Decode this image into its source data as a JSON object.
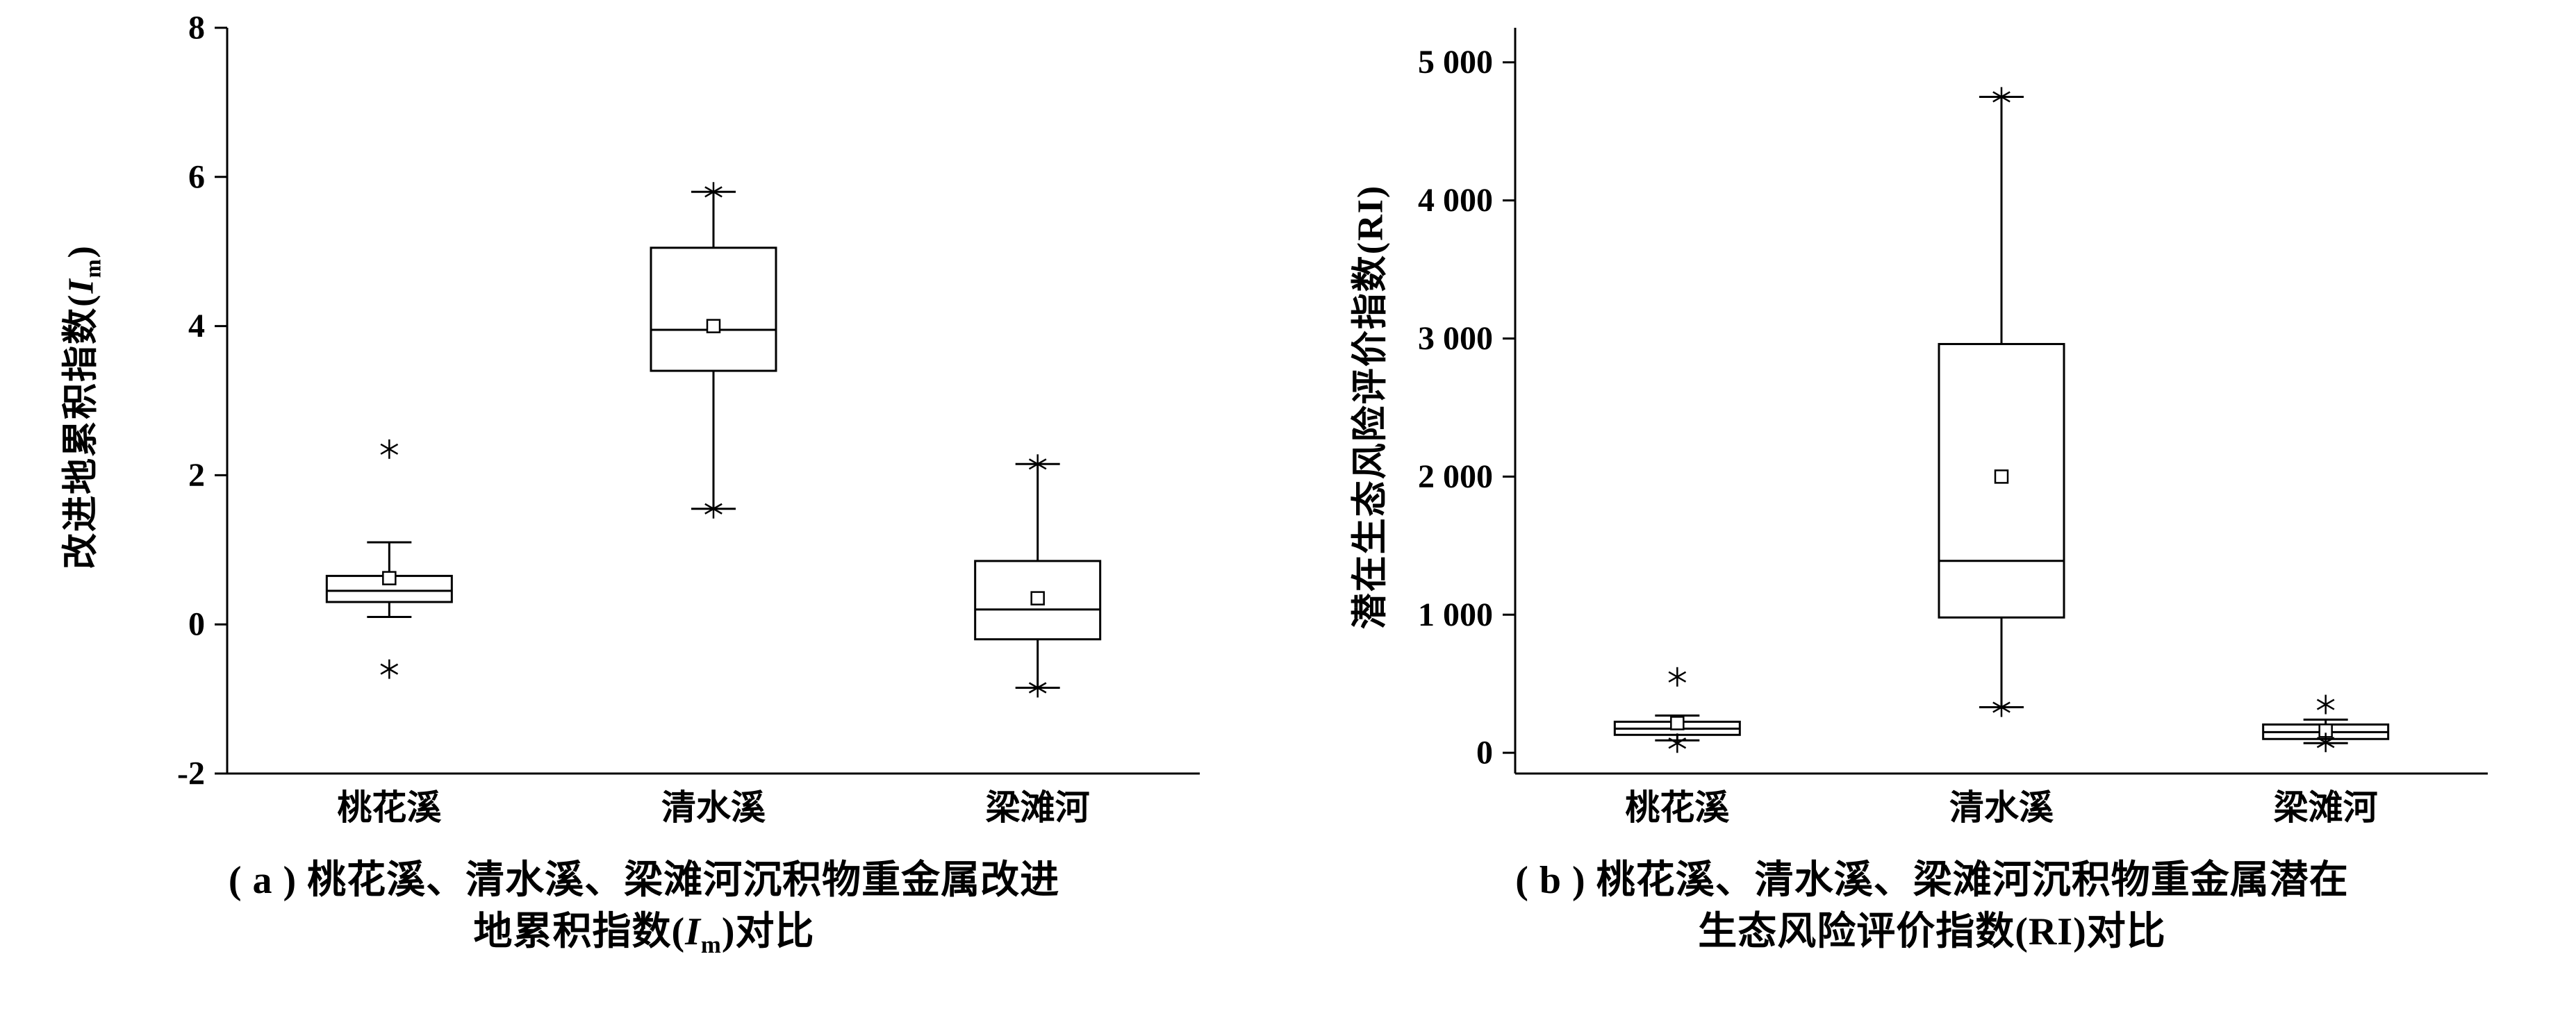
{
  "page": {
    "background": "#ffffff",
    "line_color": "#000000"
  },
  "charts": [
    {
      "panel": "a",
      "ylabel_pre": "改进地累积指数(",
      "ylabel_var": "I",
      "ylabel_var_sub": "m",
      "ylabel_post": ")",
      "caption_line1": "( a ) 桃花溪、清水溪、梁滩河沉积物重金属改进",
      "caption2_pre": "地累积指数(",
      "caption2_var": "I",
      "caption2_var_sub": "m",
      "caption2_post": ")对比"
    },
    {
      "panel": "b",
      "ylabel_pre": "潜在生态风险评价指数(RI)",
      "ylabel_var": "",
      "ylabel_var_sub": "",
      "ylabel_post": "",
      "caption_line1": "( b ) 桃花溪、清水溪、梁滩河沉积物重金属潜在",
      "caption2_pre": "生态风险评价指数(RI)对比",
      "caption2_var": "",
      "caption2_var_sub": "",
      "caption2_post": ""
    }
  ],
  "chart_data": [
    {
      "type": "boxplot",
      "title": "",
      "xlabel": "",
      "ylabel": "改进地累积指数(Im)",
      "categories": [
        "桃花溪",
        "清水溪",
        "梁滩河"
      ],
      "ylim": [
        -2,
        8
      ],
      "yticks": [
        -2,
        0,
        2,
        4,
        6,
        8
      ],
      "ytick_labels": [
        "-2",
        "0",
        "2",
        "4",
        "6",
        "8"
      ],
      "grid": false,
      "legend": "none",
      "series": [
        {
          "category": "桃花溪",
          "q1": 0.3,
          "median": 0.45,
          "q3": 0.65,
          "whisker_low": 0.1,
          "whisker_high": 1.1,
          "mean": 0.62,
          "outliers": [
            2.35,
            -0.6
          ]
        },
        {
          "category": "清水溪",
          "q1": 3.4,
          "median": 3.95,
          "q3": 5.05,
          "whisker_low": 1.55,
          "whisker_high": 5.8,
          "mean": 4.0,
          "outliers": [
            5.8,
            1.55
          ]
        },
        {
          "category": "梁滩河",
          "q1": -0.2,
          "median": 0.2,
          "q3": 0.85,
          "whisker_low": -0.85,
          "whisker_high": 2.15,
          "mean": 0.35,
          "outliers": [
            2.15,
            -0.85
          ]
        }
      ]
    },
    {
      "type": "boxplot",
      "title": "",
      "xlabel": "",
      "ylabel": "潜在生态风险评价指数(RI)",
      "categories": [
        "桃花溪",
        "清水溪",
        "梁滩河"
      ],
      "ylim": [
        -150,
        5250
      ],
      "yticks": [
        0,
        1000,
        2000,
        3000,
        4000,
        5000
      ],
      "ytick_labels": [
        "0",
        "1 000",
        "2 000",
        "3 000",
        "4 000",
        "5 000"
      ],
      "grid": false,
      "legend": "none",
      "series": [
        {
          "category": "桃花溪",
          "q1": 130,
          "median": 175,
          "q3": 225,
          "whisker_low": 90,
          "whisker_high": 270,
          "mean": 215,
          "outliers": [
            550,
            70
          ]
        },
        {
          "category": "清水溪",
          "q1": 980,
          "median": 1390,
          "q3": 2960,
          "whisker_low": 330,
          "whisker_high": 4750,
          "mean": 2000,
          "outliers": [
            4750,
            330
          ]
        },
        {
          "category": "梁滩河",
          "q1": 100,
          "median": 150,
          "q3": 205,
          "whisker_low": 70,
          "whisker_high": 240,
          "mean": 160,
          "outliers": [
            350,
            75
          ]
        }
      ]
    }
  ]
}
